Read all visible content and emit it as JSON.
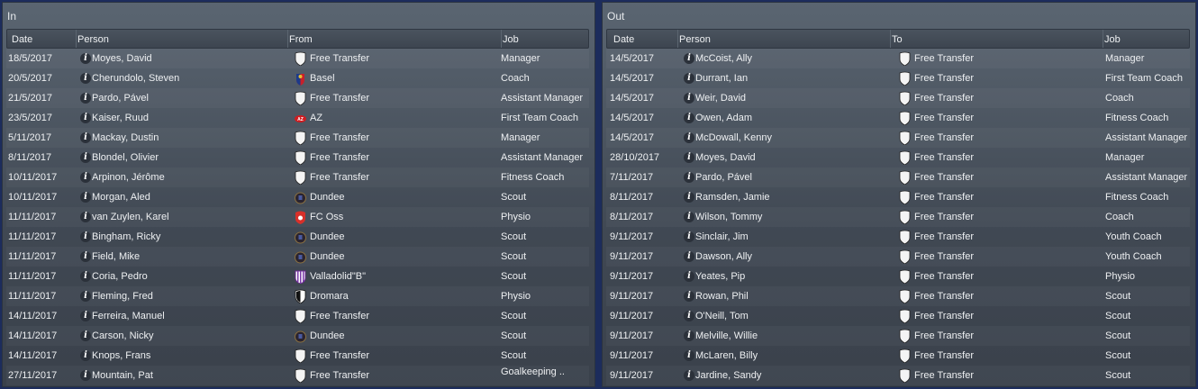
{
  "in": {
    "title": "In",
    "headers": {
      "date": "Date",
      "person": "Person",
      "club": "From",
      "job": "Job"
    },
    "rows": [
      {
        "date": "18/5/2017",
        "person": "Moyes, David",
        "club": "Free Transfer",
        "crest": "blank-shield",
        "job": "Manager"
      },
      {
        "date": "20/5/2017",
        "person": "Cherundolo, Steven",
        "club": "Basel",
        "crest": "basel-crest",
        "job": "Coach"
      },
      {
        "date": "21/5/2017",
        "person": "Pardo, Pável",
        "club": "Free Transfer",
        "crest": "blank-shield",
        "job": "Assistant Manager"
      },
      {
        "date": "23/5/2017",
        "person": "Kaiser, Ruud",
        "club": "AZ",
        "crest": "az-crest",
        "job": "First Team Coach"
      },
      {
        "date": "5/11/2017",
        "person": "Mackay, Dustin",
        "club": "Free Transfer",
        "crest": "blank-shield",
        "job": "Manager"
      },
      {
        "date": "8/11/2017",
        "person": "Blondel, Olivier",
        "club": "Free Transfer",
        "crest": "blank-shield",
        "job": "Assistant Manager"
      },
      {
        "date": "10/11/2017",
        "person": "Arpinon, Jérôme",
        "club": "Free Transfer",
        "crest": "blank-shield",
        "job": "Fitness Coach"
      },
      {
        "date": "10/11/2017",
        "person": "Morgan, Aled",
        "club": "Dundee",
        "crest": "dundee-crest",
        "job": "Scout"
      },
      {
        "date": "11/11/2017",
        "person": "van Zuylen, Karel",
        "club": "FC Oss",
        "crest": "fc-oss-crest",
        "job": "Physio"
      },
      {
        "date": "11/11/2017",
        "person": "Bingham, Ricky",
        "club": "Dundee",
        "crest": "dundee-crest",
        "job": "Scout"
      },
      {
        "date": "11/11/2017",
        "person": "Field, Mike",
        "club": "Dundee",
        "crest": "dundee-crest",
        "job": "Scout"
      },
      {
        "date": "11/11/2017",
        "person": "Coria, Pedro",
        "club": "Valladolid\"B\"",
        "crest": "valladolid-crest",
        "job": "Scout"
      },
      {
        "date": "11/11/2017",
        "person": "Fleming, Fred",
        "club": "Dromara",
        "crest": "dromara-crest",
        "job": "Physio"
      },
      {
        "date": "14/11/2017",
        "person": "Ferreira, Manuel",
        "club": "Free Transfer",
        "crest": "blank-shield",
        "job": "Scout"
      },
      {
        "date": "14/11/2017",
        "person": "Carson, Nicky",
        "club": "Dundee",
        "crest": "dundee-crest",
        "job": "Scout"
      },
      {
        "date": "14/11/2017",
        "person": "Knops, Frans",
        "club": "Free Transfer",
        "crest": "blank-shield",
        "job": "Scout"
      },
      {
        "date": "27/11/2017",
        "person": "Mountain, Pat",
        "club": "Free Transfer",
        "crest": "blank-shield",
        "job": "Goalkeeping .."
      }
    ]
  },
  "out": {
    "title": "Out",
    "headers": {
      "date": "Date",
      "person": "Person",
      "club": "To",
      "job": "Job"
    },
    "rows": [
      {
        "date": "14/5/2017",
        "person": "McCoist, Ally",
        "club": "Free Transfer",
        "crest": "blank-shield",
        "job": "Manager"
      },
      {
        "date": "14/5/2017",
        "person": "Durrant, Ian",
        "club": "Free Transfer",
        "crest": "blank-shield",
        "job": "First Team Coach"
      },
      {
        "date": "14/5/2017",
        "person": "Weir, David",
        "club": "Free Transfer",
        "crest": "blank-shield",
        "job": "Coach"
      },
      {
        "date": "14/5/2017",
        "person": "Owen, Adam",
        "club": "Free Transfer",
        "crest": "blank-shield",
        "job": "Fitness Coach"
      },
      {
        "date": "14/5/2017",
        "person": "McDowall, Kenny",
        "club": "Free Transfer",
        "crest": "blank-shield",
        "job": "Assistant Manager"
      },
      {
        "date": "28/10/2017",
        "person": "Moyes, David",
        "club": "Free Transfer",
        "crest": "blank-shield",
        "job": "Manager"
      },
      {
        "date": "7/11/2017",
        "person": "Pardo, Pável",
        "club": "Free Transfer",
        "crest": "blank-shield",
        "job": "Assistant Manager"
      },
      {
        "date": "8/11/2017",
        "person": "Ramsden, Jamie",
        "club": "Free Transfer",
        "crest": "blank-shield",
        "job": "Fitness Coach"
      },
      {
        "date": "8/11/2017",
        "person": "Wilson, Tommy",
        "club": "Free Transfer",
        "crest": "blank-shield",
        "job": "Coach"
      },
      {
        "date": "9/11/2017",
        "person": "Sinclair, Jim",
        "club": "Free Transfer",
        "crest": "blank-shield",
        "job": "Youth Coach"
      },
      {
        "date": "9/11/2017",
        "person": "Dawson, Ally",
        "club": "Free Transfer",
        "crest": "blank-shield",
        "job": "Youth Coach"
      },
      {
        "date": "9/11/2017",
        "person": "Yeates, Pip",
        "club": "Free Transfer",
        "crest": "blank-shield",
        "job": "Physio"
      },
      {
        "date": "9/11/2017",
        "person": "Rowan, Phil",
        "club": "Free Transfer",
        "crest": "blank-shield",
        "job": "Scout"
      },
      {
        "date": "9/11/2017",
        "person": "O'Neill, Tom",
        "club": "Free Transfer",
        "crest": "blank-shield",
        "job": "Scout"
      },
      {
        "date": "9/11/2017",
        "person": "Melville, Willie",
        "club": "Free Transfer",
        "crest": "blank-shield",
        "job": "Scout"
      },
      {
        "date": "9/11/2017",
        "person": "McLaren, Billy",
        "club": "Free Transfer",
        "crest": "blank-shield",
        "job": "Scout"
      },
      {
        "date": "9/11/2017",
        "person": "Jardine, Sandy",
        "club": "Free Transfer",
        "crest": "blank-shield",
        "job": "Scout"
      }
    ]
  }
}
